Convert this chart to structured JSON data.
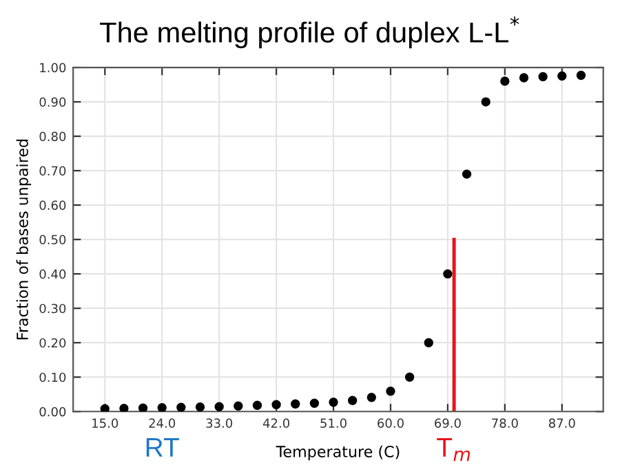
{
  "chart_data": {
    "type": "scatter",
    "title": "The melting profile of duplex L-L$^{*}$",
    "xlabel": "Temperature (C)",
    "ylabel": "Fraction of bases unpaired",
    "x": [
      15,
      18,
      21,
      24,
      27,
      30,
      33,
      36,
      39,
      42,
      45,
      48,
      51,
      54,
      57,
      60,
      63,
      66,
      69,
      72,
      75,
      78,
      81,
      84,
      87,
      90
    ],
    "series": [
      {
        "color": "#000000",
        "marker": "circle",
        "values": [
          0.008,
          0.009,
          0.01,
          0.011,
          0.012,
          0.013,
          0.014,
          0.016,
          0.018,
          0.02,
          0.022,
          0.024,
          0.027,
          0.032,
          0.041,
          0.059,
          0.1,
          0.2,
          0.4,
          0.69,
          0.9,
          0.96,
          0.97,
          0.973,
          0.975,
          0.977
        ]
      },
      {
        "type": "line",
        "name": "T$_{m}$",
        "color": "#e8141b",
        "x": [
          70,
          70
        ],
        "values": [
          0,
          0.5
        ]
      }
    ],
    "annotations": [
      {
        "text": "RT",
        "x": 24,
        "y": 0
      }
    ],
    "xlim": [
      10,
      93.5
    ],
    "xticks": [
      {
        "value": 15,
        "label": "15.0"
      },
      {
        "value": 24,
        "label": "24.0"
      },
      {
        "value": 33,
        "label": "33.0"
      },
      {
        "value": 42,
        "label": "42.0"
      },
      {
        "value": 51,
        "label": "51.0"
      },
      {
        "value": 60,
        "label": "60.0"
      },
      {
        "value": 69,
        "label": "69.0"
      },
      {
        "value": 78,
        "label": "78.0"
      },
      {
        "value": 87,
        "label": "87.0"
      }
    ],
    "ylim": [
      0,
      1
    ],
    "yticks": [
      {
        "value": 0,
        "label": "0.00"
      },
      {
        "value": 0.1,
        "label": "0.10"
      },
      {
        "value": 0.2,
        "label": "0.20"
      },
      {
        "value": 0.3,
        "label": "0.30"
      },
      {
        "value": 0.4,
        "label": "0.40"
      },
      {
        "value": 0.5,
        "label": "0.50"
      },
      {
        "value": 0.6,
        "label": "0.60"
      },
      {
        "value": 0.7,
        "label": "0.70"
      },
      {
        "value": 0.8,
        "label": "0.80"
      },
      {
        "value": 0.9,
        "label": "0.90"
      },
      {
        "value": 1,
        "label": "1.00"
      }
    ],
    "grid": true
  }
}
